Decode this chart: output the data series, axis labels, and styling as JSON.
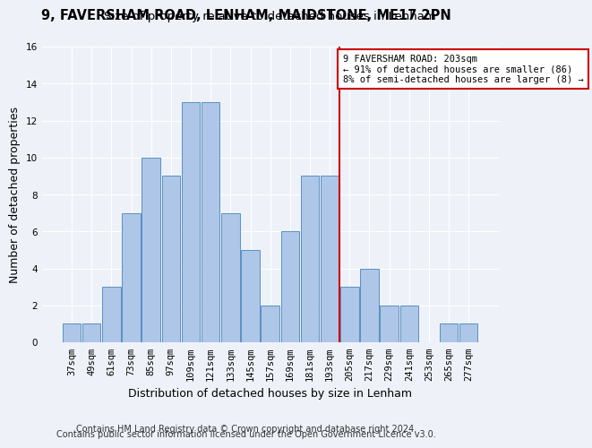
{
  "title": "9, FAVERSHAM ROAD, LENHAM, MAIDSTONE, ME17 2PN",
  "subtitle": "Size of property relative to detached houses in Lenham",
  "xlabel": "Distribution of detached houses by size in Lenham",
  "ylabel": "Number of detached properties",
  "footer_line1": "Contains HM Land Registry data © Crown copyright and database right 2024.",
  "footer_line2": "Contains public sector information licensed under the Open Government Licence v3.0.",
  "bin_labels": [
    "37sqm",
    "49sqm",
    "61sqm",
    "73sqm",
    "85sqm",
    "97sqm",
    "109sqm",
    "121sqm",
    "133sqm",
    "145sqm",
    "157sqm",
    "169sqm",
    "181sqm",
    "193sqm",
    "205sqm",
    "217sqm",
    "229sqm",
    "241sqm",
    "253sqm",
    "265sqm",
    "277sqm"
  ],
  "bar_values": [
    1,
    1,
    3,
    7,
    10,
    9,
    13,
    13,
    7,
    5,
    2,
    6,
    9,
    9,
    3,
    4,
    2,
    2,
    0,
    1,
    1
  ],
  "bar_color": "#aec6e8",
  "bar_edge_color": "#5a90c0",
  "ylim": [
    0,
    16
  ],
  "yticks": [
    0,
    2,
    4,
    6,
    8,
    10,
    12,
    14,
    16
  ],
  "vline_x_index": 13.5,
  "vline_color": "#cc0000",
  "annotation_text": "9 FAVERSHAM ROAD: 203sqm\n← 91% of detached houses are smaller (86)\n8% of semi-detached houses are larger (8) →",
  "annotation_box_color": "#ffffff",
  "annotation_border_color": "#cc0000",
  "background_color": "#eef2f8",
  "plot_bg_color": "#eef2f8",
  "grid_color": "#ffffff",
  "title_fontsize": 10.5,
  "subtitle_fontsize": 9.5,
  "axis_label_fontsize": 9,
  "tick_fontsize": 7.5,
  "annotation_fontsize": 7.5,
  "footer_fontsize": 7
}
